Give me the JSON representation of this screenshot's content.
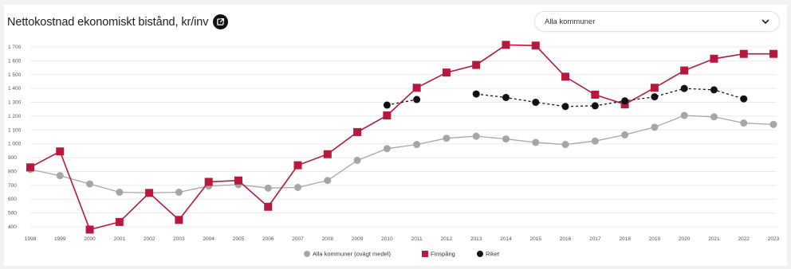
{
  "header": {
    "title": "Nettokostnad ekonomiskt bistånd, kr/inv",
    "export_icon": "external-link-icon"
  },
  "filter": {
    "selected": "Alla kommuner",
    "icon": "chevron-down-icon"
  },
  "chart_data": {
    "type": "line",
    "title": "Nettokostnad ekonomiskt bistånd, kr/inv",
    "xlabel": "",
    "ylabel": "",
    "categories": [
      "1998",
      "1999",
      "2000",
      "2001",
      "2002",
      "2003",
      "2004",
      "2005",
      "2006",
      "2007",
      "2008",
      "2009",
      "2010",
      "2011",
      "2012",
      "2013",
      "2014",
      "2015",
      "2016",
      "2017",
      "2018",
      "2019",
      "2020",
      "2021",
      "2022",
      "2023"
    ],
    "yticks": [
      "400",
      "500",
      "600",
      "700",
      "800",
      "900",
      "1 000",
      "1 100",
      "1 200",
      "1 300",
      "1 400",
      "1 500",
      "1 600",
      "1 700"
    ],
    "ylim": [
      400,
      1700
    ],
    "grid": true,
    "legend_position": "bottom",
    "series": [
      {
        "name": "Alla kommuner (ovägt medel)",
        "color": "#a6a6a6",
        "marker": "circle",
        "style": "solid",
        "values": [
          815,
          770,
          710,
          650,
          645,
          650,
          695,
          705,
          680,
          685,
          735,
          880,
          965,
          995,
          1040,
          1055,
          1035,
          1010,
          995,
          1020,
          1065,
          1120,
          1205,
          1195,
          1150,
          1140
        ]
      },
      {
        "name": "Finspång",
        "color": "#b8173e",
        "marker": "square",
        "style": "solid",
        "values": [
          830,
          945,
          380,
          435,
          645,
          450,
          725,
          735,
          545,
          845,
          925,
          1085,
          1205,
          1405,
          1515,
          1570,
          1715,
          1710,
          1485,
          1355,
          1285,
          1405,
          1530,
          1615,
          1650,
          1650
        ]
      },
      {
        "name": "Riket",
        "color": "#111111",
        "marker": "circle",
        "style": "dashed",
        "values": [
          null,
          null,
          null,
          null,
          null,
          null,
          null,
          null,
          null,
          null,
          null,
          null,
          1280,
          1320,
          null,
          1360,
          1335,
          1300,
          1270,
          1275,
          1310,
          1340,
          1400,
          1390,
          1325,
          null
        ]
      }
    ]
  }
}
